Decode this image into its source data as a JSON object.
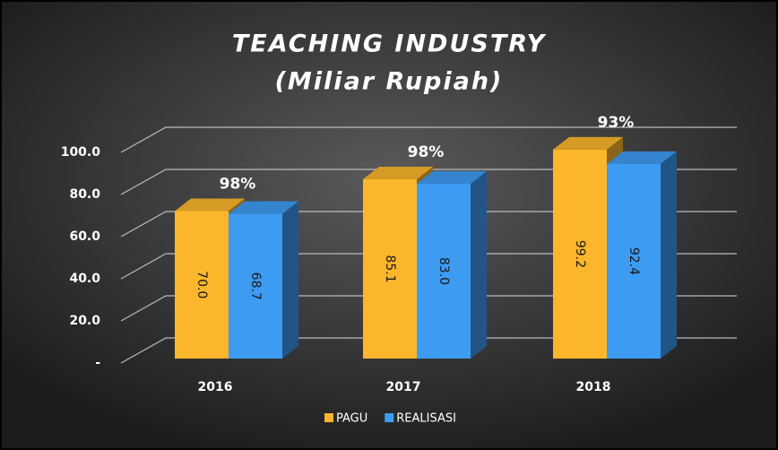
{
  "chart_data": {
    "type": "bar3d",
    "title": "TEACHING INDUSTRY",
    "subtitle": "(Miliar Rupiah)",
    "categories": [
      "2016",
      "2017",
      "2018"
    ],
    "series": [
      {
        "name": "PAGU",
        "color": "#fbb62c",
        "values": [
          70.0,
          85.1,
          99.2
        ],
        "value_labels": [
          "70.0",
          "85.1",
          "99.2"
        ]
      },
      {
        "name": "REALISASI",
        "color": "#3d9bf2",
        "values": [
          68.7,
          83.0,
          92.4
        ],
        "value_labels": [
          "68.7",
          "83.0",
          "92.4"
        ]
      }
    ],
    "annotations": [
      "98%",
      "98%",
      "93%"
    ],
    "ylim": [
      0,
      100
    ],
    "yticks": [
      {
        "value": 0,
        "label": "-"
      },
      {
        "value": 20,
        "label": "20.0"
      },
      {
        "value": 40,
        "label": "40.0"
      },
      {
        "value": 60,
        "label": "60.0"
      },
      {
        "value": 80,
        "label": "80.0"
      },
      {
        "value": 100,
        "label": "100.0"
      }
    ],
    "grid": true,
    "legend": "bottom"
  }
}
